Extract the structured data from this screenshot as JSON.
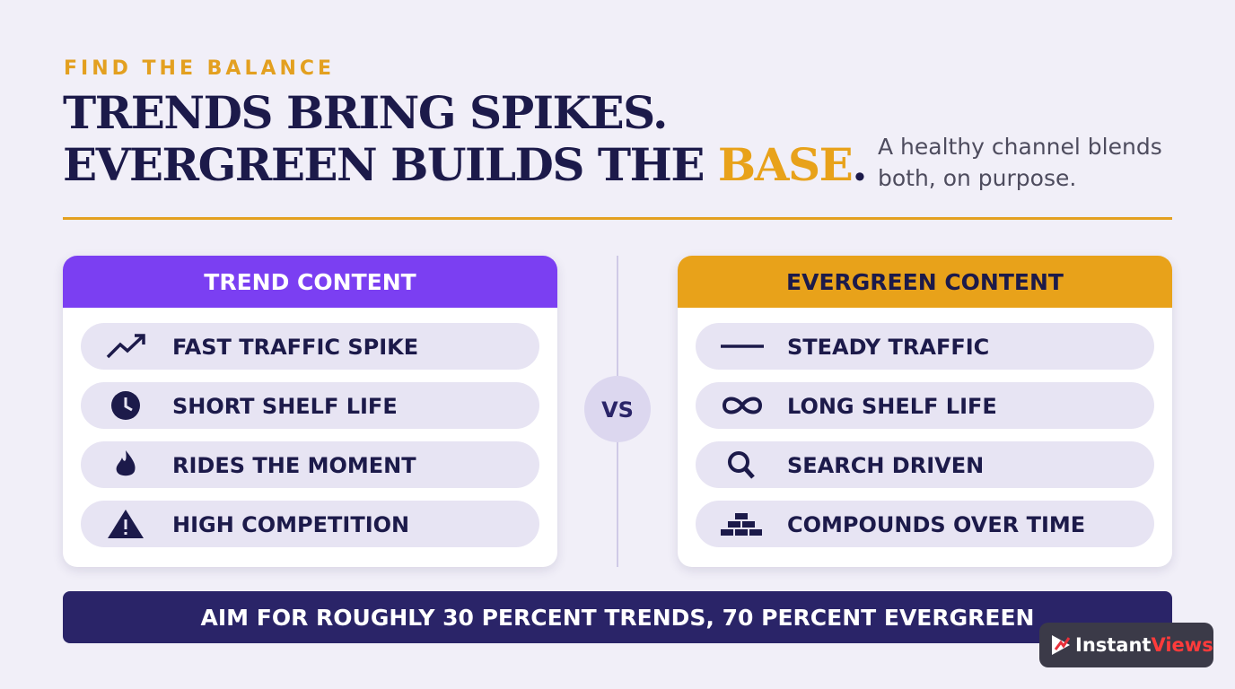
{
  "header": {
    "eyebrow": "FIND THE BALANCE",
    "title_line1": "TRENDS BRING SPIKES.",
    "title_line2": "EVERGREEN BUILDS THE",
    "title_highlight": "BASE",
    "title_end": ".",
    "subtitle": "A healthy channel blends both, on purpose."
  },
  "panels": [
    {
      "title": "TREND CONTENT",
      "items": [
        "FAST TRAFFIC SPIKE",
        "SHORT SHELF LIFE",
        "RIDES THE MOMENT",
        "HIGH COMPETITION"
      ]
    },
    {
      "title": "EVERGREEN CONTENT",
      "items": [
        "STEADY TRAFFIC",
        "LONG SHELF LIFE",
        "SEARCH DRIVEN",
        "COMPOUNDS OVER TIME"
      ]
    }
  ],
  "vs": "VS",
  "footer": "AIM FOR ROUGHLY 30 PERCENT TRENDS, 70 PERCENT EVERGREEN",
  "logo": {
    "part1": "Instant",
    "part2": "Views"
  }
}
